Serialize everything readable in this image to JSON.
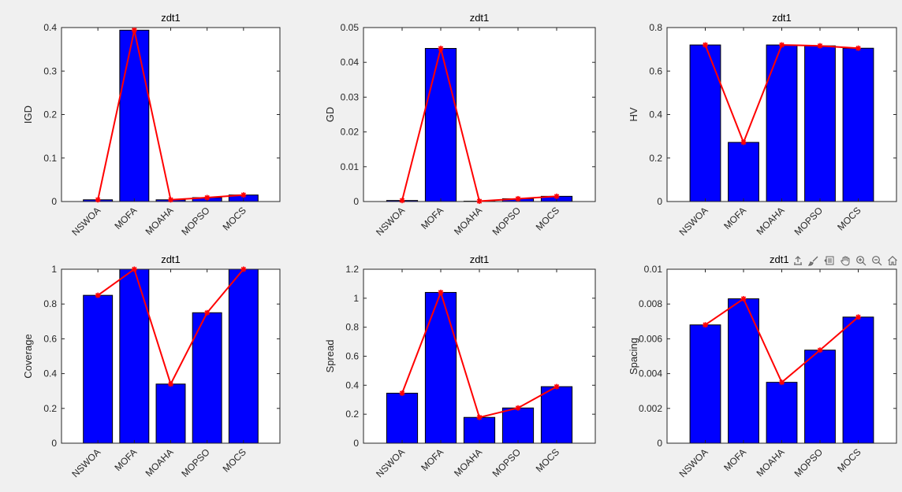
{
  "colors": {
    "bar": "#0000ff",
    "line": "#ff0000",
    "axis": "#262626",
    "background": "#f0f0f0",
    "axes_bg": "#ffffff"
  },
  "toolbar": {
    "items": [
      {
        "name": "export-icon"
      },
      {
        "name": "brush-icon"
      },
      {
        "name": "data-tips-icon"
      },
      {
        "name": "pan-icon"
      },
      {
        "name": "zoom-in-icon"
      },
      {
        "name": "zoom-out-icon"
      },
      {
        "name": "home-icon"
      }
    ]
  },
  "chart_data": [
    {
      "type": "bar",
      "title": "zdt1",
      "ylabel": "IGD",
      "categories": [
        "NSWOA",
        "MOFA",
        "MOAHA",
        "MOPSO",
        "MOCS"
      ],
      "values": [
        0.004,
        0.394,
        0.004,
        0.009,
        0.015
      ],
      "line_values": [
        0.004,
        0.394,
        0.004,
        0.009,
        0.015
      ],
      "ylim": [
        0,
        0.4
      ],
      "yticks": [
        0,
        0.1,
        0.2,
        0.3,
        0.4
      ],
      "ytick_labels": [
        "0",
        "0.1",
        "0.2",
        "0.3",
        "0.4"
      ]
    },
    {
      "type": "bar",
      "title": "zdt1",
      "ylabel": "GD",
      "categories": [
        "NSWOA",
        "MOFA",
        "MOAHA",
        "MOPSO",
        "MOCS"
      ],
      "values": [
        0.0003,
        0.044,
        0.0001,
        0.0008,
        0.0015
      ],
      "line_values": [
        0.0003,
        0.044,
        0.0001,
        0.0008,
        0.0015
      ],
      "ylim": [
        0,
        0.05
      ],
      "yticks": [
        0,
        0.01,
        0.02,
        0.03,
        0.04,
        0.05
      ],
      "ytick_labels": [
        "0",
        "0.01",
        "0.02",
        "0.03",
        "0.04",
        "0.05"
      ]
    },
    {
      "type": "bar",
      "title": "zdt1",
      "ylabel": "HV",
      "categories": [
        "NSWOA",
        "MOFA",
        "MOAHA",
        "MOPSO",
        "MOCS"
      ],
      "values": [
        0.72,
        0.272,
        0.72,
        0.716,
        0.705
      ],
      "line_values": [
        0.72,
        0.272,
        0.72,
        0.716,
        0.705
      ],
      "ylim": [
        0,
        0.8
      ],
      "yticks": [
        0,
        0.2,
        0.4,
        0.6,
        0.8
      ],
      "ytick_labels": [
        "0",
        "0.2",
        "0.4",
        "0.6",
        "0.8"
      ]
    },
    {
      "type": "bar",
      "title": "zdt1",
      "ylabel": "Coverage",
      "categories": [
        "NSWOA",
        "MOFA",
        "MOAHA",
        "MOPSO",
        "MOCS"
      ],
      "values": [
        0.85,
        1.0,
        0.34,
        0.75,
        1.0
      ],
      "line_values": [
        0.85,
        1.0,
        0.34,
        0.75,
        1.0
      ],
      "ylim": [
        0,
        1
      ],
      "yticks": [
        0,
        0.2,
        0.4,
        0.6,
        0.8,
        1
      ],
      "ytick_labels": [
        "0",
        "0.2",
        "0.4",
        "0.6",
        "0.8",
        "1"
      ]
    },
    {
      "type": "bar",
      "title": "zdt1",
      "ylabel": "Spread",
      "categories": [
        "NSWOA",
        "MOFA",
        "MOAHA",
        "MOPSO",
        "MOCS"
      ],
      "values": [
        0.345,
        1.04,
        0.178,
        0.243,
        0.39
      ],
      "line_values": [
        0.345,
        1.04,
        0.178,
        0.243,
        0.39
      ],
      "ylim": [
        0,
        1.2
      ],
      "yticks": [
        0,
        0.2,
        0.4,
        0.6,
        0.8,
        1,
        1.2
      ],
      "ytick_labels": [
        "0",
        "0.2",
        "0.4",
        "0.6",
        "0.8",
        "1",
        "1.2"
      ]
    },
    {
      "type": "bar",
      "title": "zdt1",
      "ylabel": "Spacing",
      "categories": [
        "NSWOA",
        "MOFA",
        "MOAHA",
        "MOPSO",
        "MOCS"
      ],
      "values": [
        0.0068,
        0.0083,
        0.0035,
        0.00535,
        0.00725
      ],
      "line_values": [
        0.0068,
        0.0083,
        0.0035,
        0.00535,
        0.00725
      ],
      "ylim": [
        0,
        0.01
      ],
      "yticks": [
        0,
        0.002,
        0.004,
        0.006,
        0.008,
        0.01
      ],
      "ytick_labels": [
        "0",
        "0.002",
        "0.004",
        "0.006",
        "0.008",
        "0.01"
      ]
    }
  ]
}
